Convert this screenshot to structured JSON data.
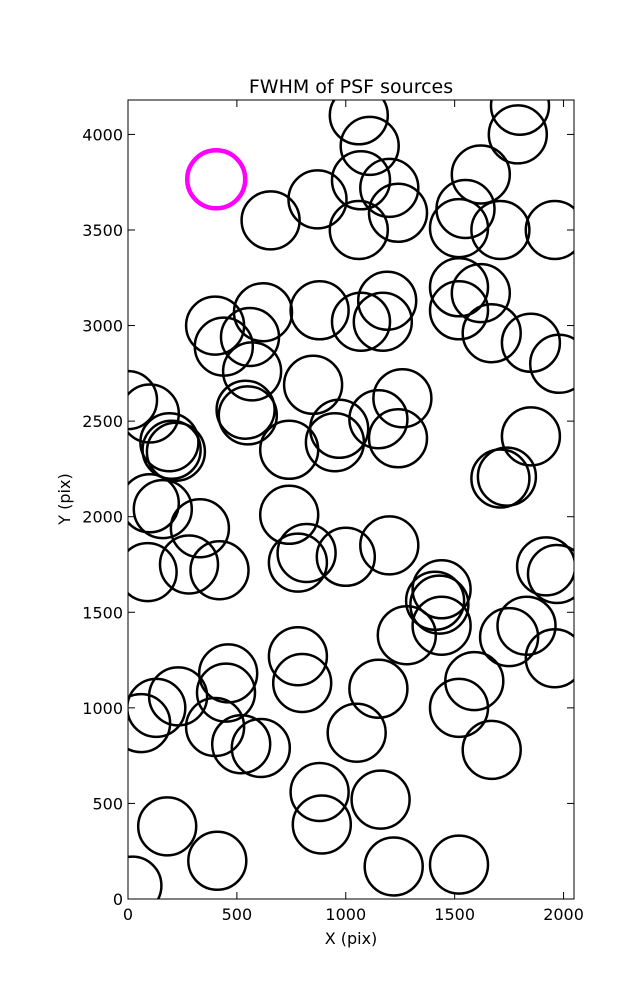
{
  "chart_data": {
    "type": "scatter",
    "title": "FWHM of PSF sources",
    "xlabel": "X (pix)",
    "ylabel": "Y (pix)",
    "xlim": [
      0,
      2048
    ],
    "ylim": [
      0,
      4180
    ],
    "xticks": [
      0,
      500,
      1000,
      1500,
      2000
    ],
    "yticks": [
      0,
      500,
      1000,
      1500,
      2000,
      2500,
      3000,
      3500,
      4000
    ],
    "grid": false,
    "reference_marker": {
      "x": 405,
      "y": 3765,
      "color": "#ff00ff"
    },
    "series": [
      {
        "color": "#000000",
        "points": [
          [
            1060,
            4100
          ],
          [
            1110,
            3940
          ],
          [
            1800,
            4150
          ],
          [
            1790,
            4000
          ],
          [
            870,
            3660
          ],
          [
            1070,
            3760
          ],
          [
            1200,
            3720
          ],
          [
            1240,
            3590
          ],
          [
            1060,
            3500
          ],
          [
            1620,
            3790
          ],
          [
            1550,
            3610
          ],
          [
            1520,
            3510
          ],
          [
            1710,
            3500
          ],
          [
            1960,
            3500
          ],
          [
            655,
            3550
          ],
          [
            400,
            3000
          ],
          [
            440,
            2890
          ],
          [
            620,
            3070
          ],
          [
            560,
            2940
          ],
          [
            570,
            2760
          ],
          [
            880,
            3080
          ],
          [
            1070,
            3020
          ],
          [
            1190,
            3130
          ],
          [
            1170,
            3020
          ],
          [
            1520,
            3200
          ],
          [
            1620,
            3170
          ],
          [
            1520,
            3080
          ],
          [
            1670,
            2960
          ],
          [
            1850,
            2910
          ],
          [
            1980,
            2800
          ],
          [
            0,
            2610
          ],
          [
            100,
            2540
          ],
          [
            190,
            2390
          ],
          [
            200,
            2350
          ],
          [
            220,
            2340
          ],
          [
            540,
            2560
          ],
          [
            550,
            2530
          ],
          [
            850,
            2690
          ],
          [
            970,
            2460
          ],
          [
            950,
            2390
          ],
          [
            1150,
            2510
          ],
          [
            1260,
            2620
          ],
          [
            1240,
            2410
          ],
          [
            740,
            2350
          ],
          [
            1850,
            2420
          ],
          [
            1710,
            2200
          ],
          [
            1740,
            2210
          ],
          [
            100,
            2070
          ],
          [
            160,
            2040
          ],
          [
            330,
            1940
          ],
          [
            740,
            2010
          ],
          [
            780,
            1760
          ],
          [
            820,
            1810
          ],
          [
            1000,
            1790
          ],
          [
            1200,
            1850
          ],
          [
            90,
            1710
          ],
          [
            280,
            1750
          ],
          [
            420,
            1720
          ],
          [
            1440,
            1620
          ],
          [
            1410,
            1560
          ],
          [
            1430,
            1540
          ],
          [
            1440,
            1430
          ],
          [
            1280,
            1380
          ],
          [
            1830,
            1430
          ],
          [
            1750,
            1370
          ],
          [
            1920,
            1740
          ],
          [
            1970,
            1700
          ],
          [
            1960,
            1260
          ],
          [
            460,
            1180
          ],
          [
            450,
            1080
          ],
          [
            230,
            1060
          ],
          [
            130,
            1000
          ],
          [
            60,
            920
          ],
          [
            400,
            900
          ],
          [
            520,
            810
          ],
          [
            610,
            790
          ],
          [
            780,
            1270
          ],
          [
            800,
            1130
          ],
          [
            1150,
            1100
          ],
          [
            1050,
            870
          ],
          [
            1590,
            1140
          ],
          [
            1520,
            1000
          ],
          [
            1670,
            780
          ],
          [
            880,
            560
          ],
          [
            890,
            390
          ],
          [
            1160,
            520
          ],
          [
            180,
            380
          ],
          [
            410,
            200
          ],
          [
            20,
            70
          ],
          [
            1220,
            170
          ],
          [
            1520,
            180
          ]
        ]
      }
    ]
  }
}
